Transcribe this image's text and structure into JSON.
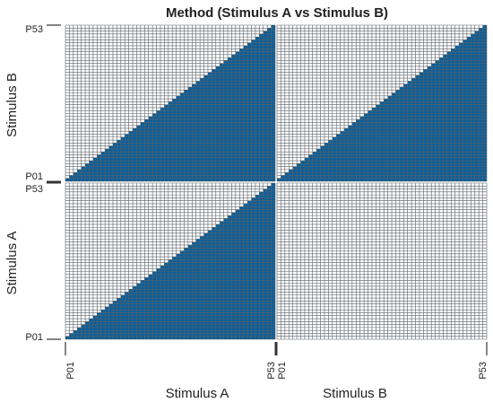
{
  "chart_data": {
    "type": "heatmap",
    "title": "Method (Stimulus A vs Stimulus B)",
    "participants": 53,
    "x_blocks": [
      {
        "label": "Stimulus A",
        "tick_start": "P01",
        "tick_end": "P53"
      },
      {
        "label": "Stimulus B",
        "tick_start": "P01",
        "tick_end": "P53"
      }
    ],
    "y_blocks": [
      {
        "label": "Stimulus A",
        "tick_start": "P01",
        "tick_end": "P53"
      },
      {
        "label": "Stimulus B",
        "tick_start": "P01",
        "tick_end": "P53"
      }
    ],
    "cell_rule": "filled where row index <= column index (lower-right triangle) in blocks A×A, A×B, B×B; block A×B (x=Stimulus B, y=Stimulus A) empty",
    "filled_color": "#0b5f9a",
    "empty_color": "#ffffff",
    "grid_color": "#5a6168",
    "grid": true
  }
}
